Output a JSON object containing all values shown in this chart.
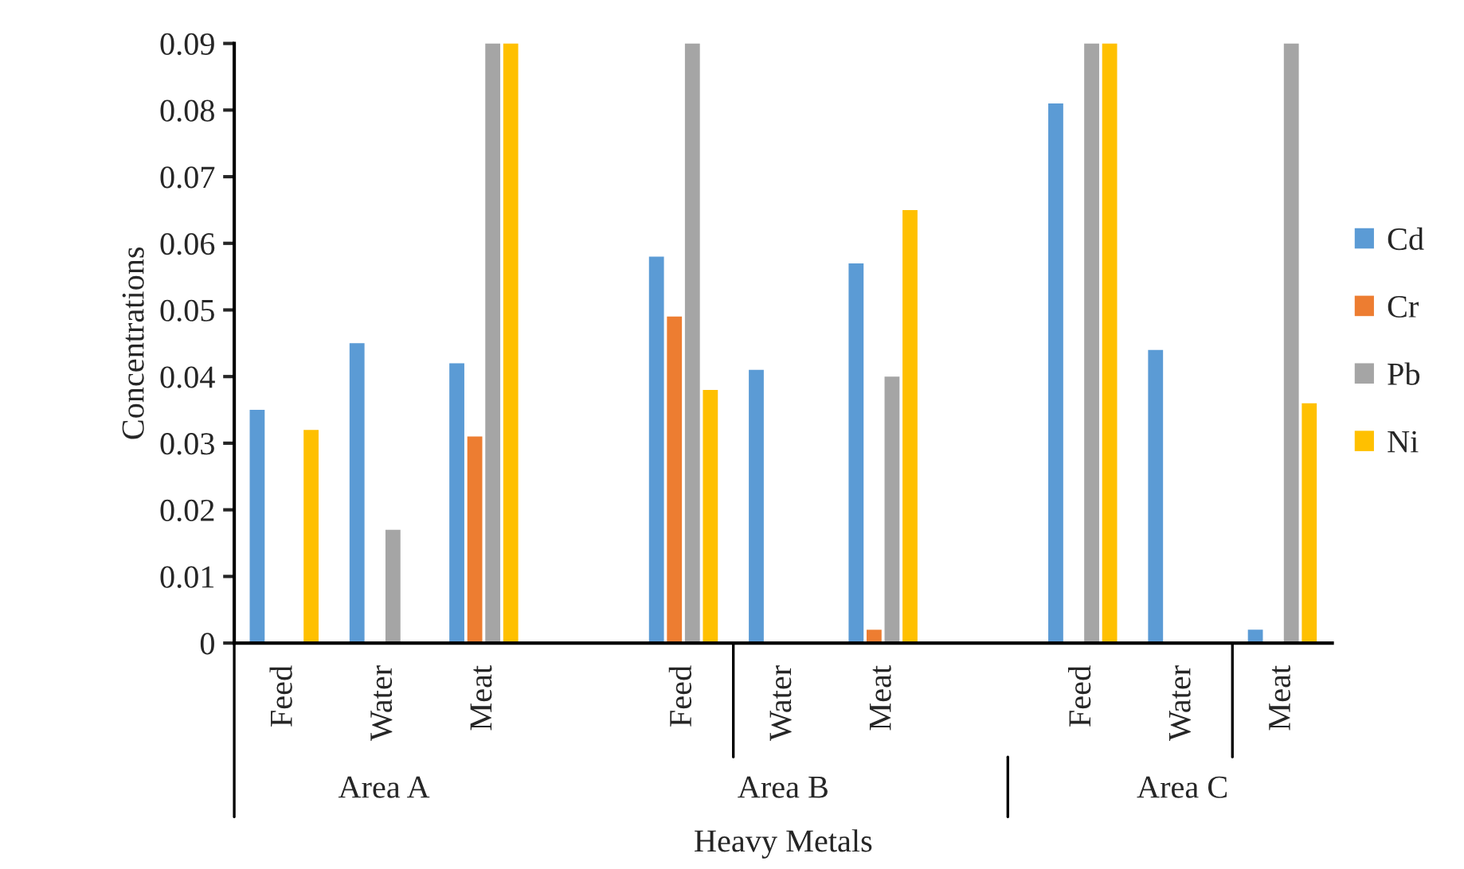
{
  "chart_data": {
    "type": "bar",
    "xlabel": "Heavy Metals",
    "ylabel": "Concentrations",
    "categories": [
      "Feed",
      "Water",
      "Meat",
      null,
      "Feed",
      "Water",
      "Meat",
      null,
      "Feed",
      "Water",
      "Meat"
    ],
    "annotations": [
      "Area A",
      "Area B",
      "Area C"
    ],
    "series": [
      {
        "name": "Cd",
        "color": "#5b9bd5",
        "values": [
          0.035,
          0.045,
          0.042,
          null,
          0.058,
          0.041,
          0.057,
          null,
          0.081,
          0.044,
          0.002
        ]
      },
      {
        "name": "Cr",
        "color": "#ed7d31",
        "values": [
          null,
          null,
          0.031,
          null,
          0.049,
          null,
          0.002,
          null,
          null,
          null,
          null
        ]
      },
      {
        "name": "Pb",
        "color": "#a5a5a5",
        "values": [
          null,
          0.017,
          0.09,
          null,
          0.09,
          null,
          0.04,
          null,
          0.09,
          null,
          0.09
        ]
      },
      {
        "name": "Ni",
        "color": "#ffc000",
        "values": [
          0.032,
          null,
          0.09,
          null,
          0.038,
          null,
          0.065,
          null,
          0.09,
          null,
          0.036
        ]
      }
    ],
    "ylim": [
      0,
      0.09
    ],
    "yticks": [
      0,
      0.01,
      0.02,
      0.03,
      0.04,
      0.05,
      0.06,
      0.07,
      0.08,
      0.09
    ],
    "grid": false,
    "legend": "right"
  }
}
